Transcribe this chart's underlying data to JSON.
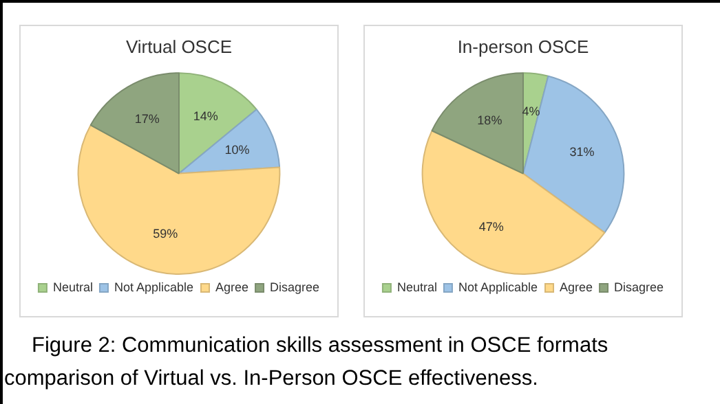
{
  "chart_data": [
    {
      "type": "pie",
      "title": "Virtual OSCE",
      "categories": [
        "Neutral",
        "Not Applicable",
        "Agree",
        "Disagree"
      ],
      "values": [
        14,
        10,
        59,
        17
      ],
      "colors": [
        "#a9d18e",
        "#9dc3e6",
        "#ffd98a",
        "#8fa57f"
      ],
      "value_labels": [
        "14%",
        "10%",
        "59%",
        "17%"
      ],
      "legend": "bottom",
      "annotations": [
        "Figure 2: Communication skills assessment in OSCE formats comparison of Virtual vs. In-Person OSCE effectiveness."
      ]
    },
    {
      "type": "pie",
      "title": "In-person OSCE",
      "categories": [
        "Neutral",
        "Not Applicable",
        "Agree",
        "Disagree"
      ],
      "values": [
        4,
        31,
        47,
        18
      ],
      "colors": [
        "#a9d18e",
        "#9dc3e6",
        "#ffd98a",
        "#8fa57f"
      ],
      "value_labels": [
        "4%",
        "31%",
        "47%",
        "18%"
      ],
      "legend": "bottom"
    }
  ]
}
